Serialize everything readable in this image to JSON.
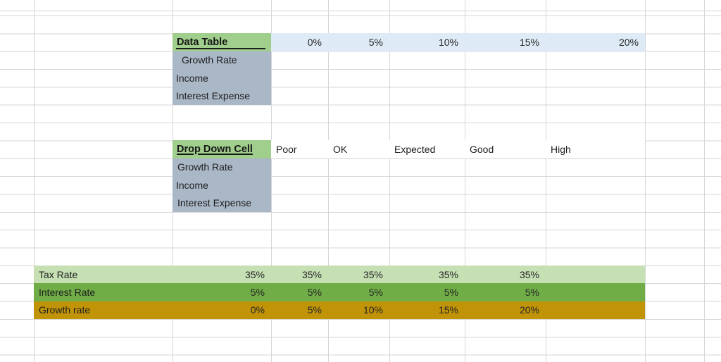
{
  "sheet": {
    "table1": {
      "title": "Data Table",
      "column_headers": [
        "0%",
        "5%",
        "10%",
        "15%",
        "20%"
      ],
      "row_labels": [
        "Growth Rate",
        "Income",
        "Interest Expense"
      ]
    },
    "table2": {
      "title": "Drop Down Cell",
      "column_headers": [
        "Poor",
        "OK",
        "Expected",
        "Good",
        "High"
      ],
      "row_labels": [
        "Growth Rate",
        "Income",
        "Interest Expense"
      ]
    },
    "assumptions": {
      "rows": [
        {
          "label": "Tax Rate",
          "values": [
            "35%",
            "35%",
            "35%",
            "35%",
            "35%"
          ],
          "color": "#c6e0b4"
        },
        {
          "label": "Interest Rate",
          "values": [
            "5%",
            "5%",
            "5%",
            "5%",
            "5%"
          ],
          "color": "#70ad47"
        },
        {
          "label": "Growth rate",
          "values": [
            "0%",
            "5%",
            "10%",
            "15%",
            "20%"
          ],
          "color": "#c19408"
        }
      ]
    },
    "colors": {
      "header_green": "#a0ce8c",
      "label_blue_gray": "#a9b7c7",
      "band_light_blue": "#deebf7",
      "tax_row_green": "#c6e0b4",
      "interest_row_green": "#70ad47",
      "growth_row_gold": "#c19408",
      "gridline": "#d6d6d6"
    }
  }
}
